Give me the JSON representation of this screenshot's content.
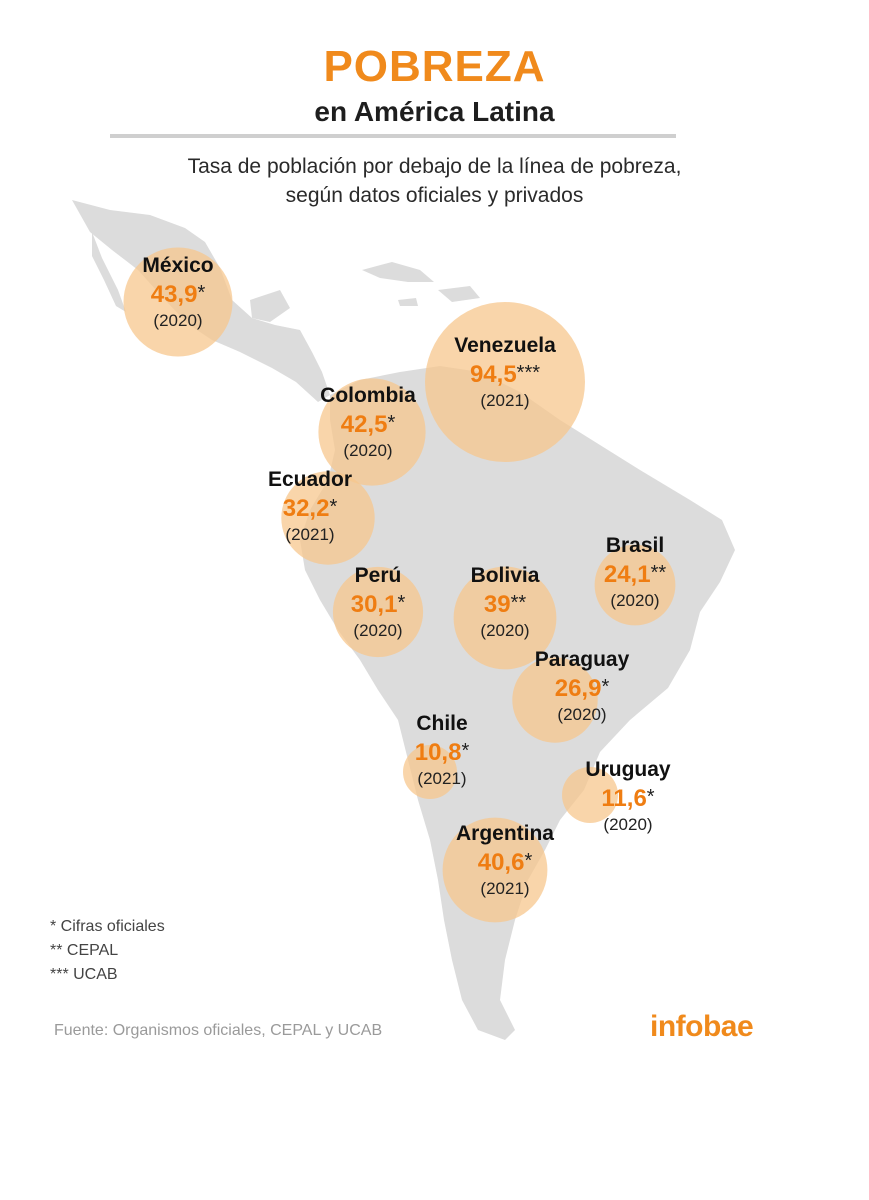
{
  "header": {
    "title": "POBREZA",
    "subtitle": "en América Latina",
    "description_line1": "Tasa de población por debajo de la línea de pobreza,",
    "description_line2": "según datos oficiales y privados"
  },
  "colors": {
    "accent": "#f08a1c",
    "bubble": "#f7c78e",
    "map": "#dcdcdc"
  },
  "chart_data": {
    "type": "bubble-map",
    "title": "POBREZA",
    "subtitle": "en América Latina",
    "countries": [
      {
        "name": "México",
        "value_label": "43,9",
        "value": 43.9,
        "source_mark": "*",
        "year": "(2020)"
      },
      {
        "name": "Venezuela",
        "value_label": "94,5",
        "value": 94.5,
        "source_mark": "***",
        "year": "(2021)"
      },
      {
        "name": "Colombia",
        "value_label": "42,5",
        "value": 42.5,
        "source_mark": "*",
        "year": "(2020)"
      },
      {
        "name": "Ecuador",
        "value_label": "32,2",
        "value": 32.2,
        "source_mark": "*",
        "year": "(2021)"
      },
      {
        "name": "Perú",
        "value_label": "30,1",
        "value": 30.1,
        "source_mark": "*",
        "year": "(2020)"
      },
      {
        "name": "Bolivia",
        "value_label": "39",
        "value": 39,
        "source_mark": "**",
        "year": "(2020)"
      },
      {
        "name": "Brasil",
        "value_label": "24,1",
        "value": 24.1,
        "source_mark": "**",
        "year": "(2020)"
      },
      {
        "name": "Paraguay",
        "value_label": "26,9",
        "value": 26.9,
        "source_mark": "*",
        "year": "(2020)"
      },
      {
        "name": "Chile",
        "value_label": "10,8",
        "value": 10.8,
        "source_mark": "*",
        "year": "(2021)"
      },
      {
        "name": "Uruguay",
        "value_label": "11,6",
        "value": 11.6,
        "source_mark": "*",
        "year": "(2020)"
      },
      {
        "name": "Argentina",
        "value_label": "40,6",
        "value": 40.6,
        "source_mark": "*",
        "year": "(2021)"
      }
    ]
  },
  "legend": {
    "items": [
      "* Cifras oficiales",
      "** CEPAL",
      "*** UCAB"
    ]
  },
  "footer": {
    "source": "Fuente: Organismos oficiales, CEPAL y UCAB",
    "logo": "infobae"
  }
}
